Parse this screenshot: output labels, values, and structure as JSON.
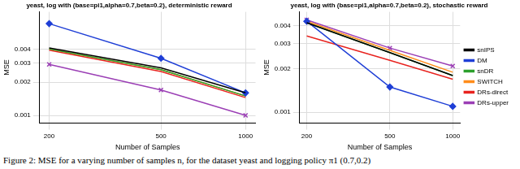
{
  "chart_data": [
    {
      "type": "line",
      "title": "yeast, log with (base=pi1,alpha=0.7,beta=0.2), deterministic reward",
      "x_label": "Number of Samples",
      "y_label": "MSE",
      "x": [
        200,
        500,
        1000
      ],
      "series": [
        {
          "name": "snIPS",
          "color": "#000000",
          "values": [
            0.0041,
            0.0027,
            0.0016
          ]
        },
        {
          "name": "DM",
          "color": "#1f3fd6",
          "marker": "diamond",
          "values": [
            0.0068,
            0.0033,
            0.0016
          ]
        },
        {
          "name": "snDR",
          "color": "#2ca02c",
          "values": [
            0.004,
            0.0026,
            0.0015
          ]
        },
        {
          "name": "SWITCH",
          "color": "#ff8c1a",
          "values": [
            0.004,
            0.0026,
            0.0015
          ]
        },
        {
          "name": "DRs-direct",
          "color": "#e8231f",
          "values": [
            0.0039,
            0.0025,
            0.00145
          ]
        },
        {
          "name": "DRs-upper",
          "color": "#9b3fb5",
          "marker": "x",
          "values": [
            0.0029,
            0.0017,
            0.001
          ]
        }
      ],
      "log": true,
      "xlim": [
        185,
        1085
      ],
      "xticks": [
        200,
        500,
        1000
      ],
      "ylim": [
        0.00085,
        0.0087
      ],
      "yticks": [
        0.001,
        0.002,
        0.003,
        0.004
      ],
      "grid": true
    },
    {
      "type": "line",
      "title": "yeast, log with (base=pi1,alpha=0.7,beta=0.2), stochastic reward",
      "x_label": "Number of Samples",
      "y_label": "MSE",
      "x": [
        200,
        500,
        1000
      ],
      "series": [
        {
          "name": "snIPS",
          "color": "#000000",
          "values": [
            0.0042,
            0.0026,
            0.0018
          ]
        },
        {
          "name": "DM",
          "color": "#1f3fd6",
          "marker": "diamond",
          "values": [
            0.0043,
            0.0015,
            0.0011
          ]
        },
        {
          "name": "snDR",
          "color": "#2ca02c",
          "values": [
            0.0042,
            0.0026,
            0.0018
          ]
        },
        {
          "name": "SWITCH",
          "color": "#ff8c1a",
          "values": [
            0.0043,
            0.0027,
            0.0019
          ]
        },
        {
          "name": "DRs-direct",
          "color": "#e8231f",
          "values": [
            0.0034,
            0.0023,
            0.0017
          ]
        },
        {
          "name": "DRs-upper",
          "color": "#9b3fb5",
          "marker": "x",
          "values": [
            0.0044,
            0.0028,
            0.0021
          ]
        }
      ],
      "log": true,
      "xlim": [
        185,
        1085
      ],
      "xticks": [
        200,
        500,
        1000
      ],
      "ylim": [
        0.00084,
        0.005
      ],
      "yticks": [
        0.001,
        0.002,
        0.003,
        0.004
      ],
      "grid": true,
      "legend": "right"
    }
  ],
  "caption": "Figure 2: MSE for a varying number of samples n, for the dataset yeast and logging policy π1 (0.7,0.2)"
}
